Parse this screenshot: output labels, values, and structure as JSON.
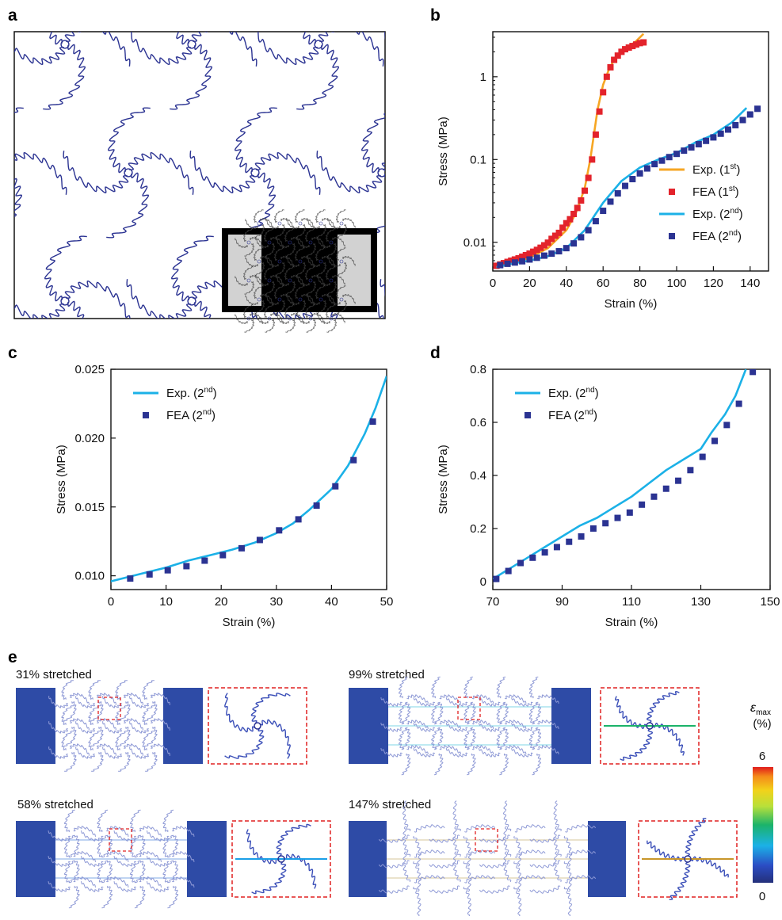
{
  "figure": {
    "panel_labels": [
      "a",
      "b",
      "c",
      "d",
      "e"
    ]
  },
  "colors": {
    "orange": "#f6a623",
    "red": "#e3232b",
    "cyan": "#1bb1e7",
    "navy": "#2b3392",
    "block": "#2e4ba6",
    "dash": "#e02020"
  },
  "chart_data": [
    {
      "id": "b",
      "type": "line",
      "xlabel": "Strain (%)",
      "ylabel": "Stress (MPa)",
      "xlim": [
        0,
        150
      ],
      "ylim": [
        0.0045,
        3.5
      ],
      "yscale": "log",
      "xticks": [
        0,
        20,
        40,
        60,
        80,
        100,
        120,
        140
      ],
      "yticks": [
        0.01,
        0.1,
        1
      ],
      "ytick_labels": [
        "0.01",
        "0.1",
        "1"
      ],
      "legend_position": "bottom-right",
      "series": [
        {
          "name": "Exp. (1st)",
          "kind": "line",
          "color": "#f6a623",
          "x": [
            2,
            10,
            20,
            30,
            40,
            45,
            50,
            53,
            55,
            57,
            60,
            63,
            66,
            70,
            74,
            78,
            82
          ],
          "y": [
            0.005,
            0.0055,
            0.0065,
            0.0085,
            0.014,
            0.022,
            0.045,
            0.1,
            0.2,
            0.4,
            0.8,
            1.2,
            1.6,
            2.0,
            2.3,
            2.7,
            3.3
          ]
        },
        {
          "name": "FEA (1st)",
          "kind": "markers",
          "color": "#e3232b",
          "x": [
            2,
            4,
            6,
            8,
            10,
            12,
            14,
            16,
            18,
            20,
            22,
            24,
            26,
            28,
            30,
            32,
            34,
            36,
            38,
            40,
            42,
            44,
            46,
            48,
            50,
            52,
            54,
            56,
            58,
            60,
            62,
            64,
            66,
            68,
            70,
            72,
            74,
            76,
            78,
            80,
            82
          ],
          "y": [
            0.0052,
            0.0054,
            0.0056,
            0.0058,
            0.006,
            0.0062,
            0.0064,
            0.0067,
            0.007,
            0.0073,
            0.0077,
            0.0081,
            0.0086,
            0.0092,
            0.0099,
            0.011,
            0.012,
            0.013,
            0.015,
            0.017,
            0.019,
            0.022,
            0.026,
            0.032,
            0.042,
            0.06,
            0.1,
            0.2,
            0.38,
            0.65,
            1.0,
            1.3,
            1.6,
            1.8,
            2.0,
            2.15,
            2.25,
            2.35,
            2.45,
            2.55,
            2.6
          ]
        },
        {
          "name": "Exp. (2nd)",
          "kind": "line",
          "color": "#1bb1e7",
          "x": [
            2,
            10,
            20,
            30,
            40,
            50,
            60,
            70,
            80,
            90,
            100,
            110,
            120,
            130,
            138
          ],
          "y": [
            0.005,
            0.0055,
            0.006,
            0.0068,
            0.0085,
            0.014,
            0.03,
            0.055,
            0.08,
            0.1,
            0.12,
            0.16,
            0.2,
            0.28,
            0.42
          ]
        },
        {
          "name": "FEA (2nd)",
          "kind": "markers",
          "color": "#2b3392",
          "x": [
            4,
            8,
            12,
            16,
            20,
            24,
            28,
            32,
            36,
            40,
            44,
            48,
            52,
            56,
            60,
            64,
            68,
            72,
            76,
            80,
            84,
            88,
            92,
            96,
            100,
            104,
            108,
            112,
            116,
            120,
            124,
            128,
            132,
            136,
            140,
            144
          ],
          "y": [
            0.0053,
            0.0055,
            0.0057,
            0.0059,
            0.0062,
            0.0065,
            0.0069,
            0.0073,
            0.0078,
            0.0085,
            0.0097,
            0.0115,
            0.014,
            0.018,
            0.024,
            0.031,
            0.039,
            0.048,
            0.058,
            0.068,
            0.078,
            0.088,
            0.097,
            0.107,
            0.117,
            0.128,
            0.14,
            0.153,
            0.168,
            0.185,
            0.205,
            0.23,
            0.26,
            0.3,
            0.35,
            0.41
          ]
        }
      ]
    },
    {
      "id": "c",
      "type": "line",
      "xlabel": "Strain (%)",
      "ylabel": "Stress (MPa)",
      "xlim": [
        0,
        50
      ],
      "ylim": [
        0.009,
        0.025
      ],
      "xticks": [
        0,
        10,
        20,
        30,
        40,
        50
      ],
      "yticks": [
        0.01,
        0.015,
        0.02,
        0.025
      ],
      "ytick_labels": [
        "0.010",
        "0.015",
        "0.020",
        "0.025"
      ],
      "legend_position": "top-left",
      "series": [
        {
          "name": "Exp. (2nd)",
          "kind": "line",
          "color": "#1bb1e7",
          "x": [
            0,
            3,
            7,
            10,
            14,
            18,
            22,
            26,
            30,
            33,
            36,
            40,
            43,
            46,
            48,
            50
          ],
          "y": [
            0.0096,
            0.0099,
            0.0103,
            0.0106,
            0.0111,
            0.0115,
            0.0119,
            0.0124,
            0.0131,
            0.0138,
            0.0148,
            0.0163,
            0.018,
            0.0203,
            0.0222,
            0.0245
          ]
        },
        {
          "name": "FEA (2nd)",
          "kind": "markers",
          "color": "#2b3392",
          "x": [
            3.5,
            7,
            10.3,
            13.7,
            17,
            20.3,
            23.7,
            27,
            30.5,
            34,
            37.3,
            40.7,
            44,
            47.5
          ],
          "y": [
            0.0098,
            0.0101,
            0.0104,
            0.0107,
            0.0111,
            0.0115,
            0.012,
            0.0126,
            0.0133,
            0.0141,
            0.0151,
            0.0165,
            0.0184,
            0.0212
          ]
        }
      ]
    },
    {
      "id": "d",
      "type": "line",
      "xlabel": "Strain (%)",
      "ylabel": "Stress (MPa)",
      "xlim": [
        70,
        150
      ],
      "ylim": [
        -0.03,
        0.8
      ],
      "xticks": [
        70,
        90,
        110,
        130,
        150
      ],
      "yticks": [
        0,
        0.2,
        0.4,
        0.6,
        0.8
      ],
      "ytick_labels": [
        "0",
        "0.2",
        "0.4",
        "0.6",
        "0.8"
      ],
      "legend_position": "top-left",
      "series": [
        {
          "name": "Exp. (2nd)",
          "kind": "line",
          "color": "#1bb1e7",
          "x": [
            70,
            75,
            80,
            85,
            90,
            95,
            100,
            105,
            110,
            115,
            120,
            125,
            130,
            133,
            137,
            140,
            143
          ],
          "y": [
            0.01,
            0.05,
            0.09,
            0.13,
            0.17,
            0.21,
            0.24,
            0.28,
            0.32,
            0.37,
            0.42,
            0.46,
            0.5,
            0.56,
            0.63,
            0.7,
            0.8
          ]
        },
        {
          "name": "FEA (2nd)",
          "kind": "markers",
          "color": "#2b3392",
          "x": [
            71,
            74.5,
            78,
            81.5,
            85,
            88.5,
            92,
            95.5,
            99,
            102.5,
            106,
            109.5,
            113,
            116.5,
            120,
            123.5,
            127,
            130.5,
            134,
            137.5,
            141,
            145
          ],
          "y": [
            0.01,
            0.04,
            0.07,
            0.09,
            0.11,
            0.13,
            0.15,
            0.17,
            0.2,
            0.22,
            0.24,
            0.26,
            0.29,
            0.32,
            0.35,
            0.38,
            0.42,
            0.47,
            0.53,
            0.59,
            0.67,
            0.79
          ]
        }
      ]
    }
  ],
  "panel_e": {
    "captions": [
      "31% stretched",
      "99% stretched",
      "58% stretched",
      "147% stretched"
    ],
    "colorbar": {
      "symbol": "ε",
      "subscript": "max",
      "unit": "(%)",
      "max_label": "6",
      "min_label": "0"
    }
  }
}
